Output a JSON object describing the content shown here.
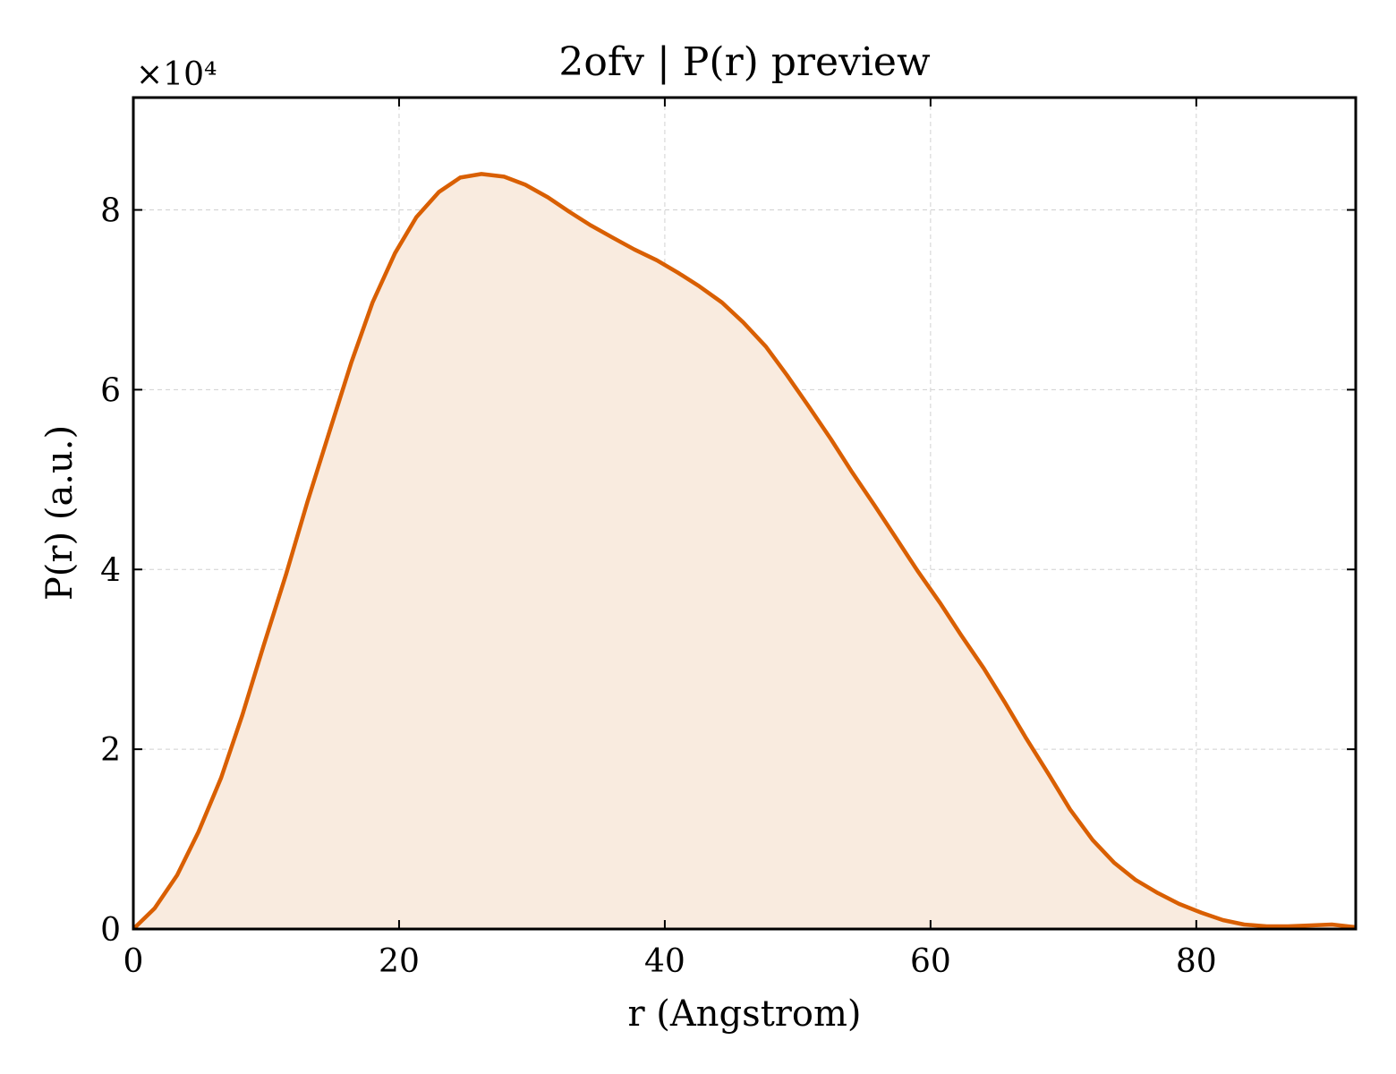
{
  "chart_data": {
    "type": "area",
    "title": "2ofv | P(r) preview",
    "xlabel": "r (Angstrom)",
    "ylabel": "P(r) (a.u.)",
    "y_multiplier": "×10⁴",
    "xlim": [
      0,
      92
    ],
    "ylim": [
      0,
      9.25
    ],
    "x_ticks": [
      0,
      20,
      40,
      60,
      80
    ],
    "x_tick_labels": [
      "0",
      "20",
      "40",
      "60",
      "80"
    ],
    "y_ticks": [
      0,
      2,
      4,
      6,
      8
    ],
    "y_tick_labels": [
      "0",
      "2",
      "4",
      "6",
      "8"
    ],
    "grid": true,
    "line_color": "#D95F02",
    "fill_color": "#F9EBDF",
    "series": [
      {
        "x": [
          0,
          1.6,
          3.3,
          4.9,
          6.6,
          8.2,
          9.8,
          11.5,
          13.1,
          14.8,
          16.4,
          18.0,
          19.7,
          21.3,
          23.0,
          24.6,
          26.2,
          27.9,
          29.5,
          31.2,
          32.8,
          34.4,
          36.1,
          37.7,
          39.4,
          41.0,
          42.6,
          44.3,
          45.9,
          47.6,
          49.2,
          50.8,
          52.5,
          54.1,
          55.8,
          57.4,
          59.0,
          60.7,
          62.3,
          64.0,
          65.6,
          67.2,
          68.9,
          70.5,
          72.2,
          73.8,
          75.4,
          77.1,
          78.7,
          80.4,
          82.0,
          83.6,
          85.3,
          86.9,
          88.6,
          90.2,
          92.0
        ],
        "y": [
          0.0,
          0.23,
          0.6,
          1.08,
          1.68,
          2.38,
          3.15,
          3.95,
          4.75,
          5.55,
          6.3,
          6.97,
          7.52,
          7.92,
          8.2,
          8.36,
          8.4,
          8.37,
          8.28,
          8.14,
          7.98,
          7.83,
          7.69,
          7.56,
          7.44,
          7.3,
          7.15,
          6.97,
          6.75,
          6.48,
          6.16,
          5.82,
          5.45,
          5.08,
          4.71,
          4.35,
          3.99,
          3.63,
          3.27,
          2.9,
          2.52,
          2.12,
          1.72,
          1.33,
          0.99,
          0.74,
          0.55,
          0.4,
          0.28,
          0.18,
          0.1,
          0.05,
          0.03,
          0.03,
          0.04,
          0.05,
          0.02
        ]
      }
    ]
  }
}
